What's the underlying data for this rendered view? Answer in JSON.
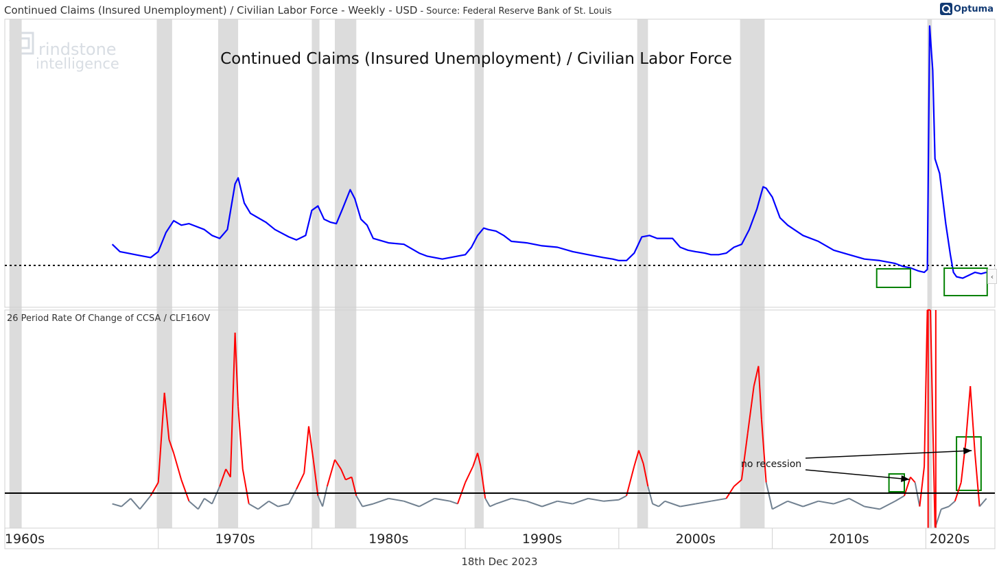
{
  "header": {
    "title": "Continued Claims (Insured Unemployment) / Civilian Labor Force - Weekly - USD",
    "source": "- Source: Federal Reserve Bank of St. Louis"
  },
  "brand": {
    "name": "Optuma",
    "icon": "optuma-logo-icon"
  },
  "watermark": {
    "line1": "rindstone",
    "line2": "intelligence"
  },
  "footer": {
    "date": "18th Dec 2023"
  },
  "colors": {
    "upper_line": "#0000ff",
    "lower_positive": "#ff0000",
    "lower_negative": "#708090",
    "recession_band": "#dcdcdc",
    "highlight_box": "#008000"
  },
  "chart_data": [
    {
      "type": "line",
      "title": "Continued Claims (Insured Unemployment) / Civilian Labor Force",
      "x_unit": "year",
      "xlim": [
        1960,
        2024.5
      ],
      "x_tick_labels": [
        "1960s",
        "1970s",
        "1980s",
        "1990s",
        "2000s",
        "2010s",
        "2020s"
      ],
      "reference_line": {
        "style": "dotted",
        "level_note": "horizontal reference at late-cycle lows"
      },
      "recessions": [
        [
          1960.3,
          1961.1
        ],
        [
          1969.9,
          1970.9
        ],
        [
          1973.9,
          1975.2
        ],
        [
          1980.0,
          1980.5
        ],
        [
          1981.5,
          1982.9
        ],
        [
          1990.6,
          1991.2
        ],
        [
          2001.2,
          2001.9
        ],
        [
          2007.9,
          2009.5
        ],
        [
          2020.1,
          2020.4
        ]
      ],
      "series": [
        {
          "x": [
            1967.0,
            1967.5,
            1968.0,
            1968.5,
            1969.0,
            1969.5,
            1970.0,
            1970.5,
            1971.0,
            1971.5,
            1972.0,
            1973.0,
            1973.5,
            1974.0,
            1974.5,
            1975.0,
            1975.2,
            1975.6,
            1976.0,
            1976.5,
            1977.0,
            1977.6,
            1978.5,
            1979.0,
            1979.6,
            1980.0,
            1980.4,
            1980.8,
            1981.2,
            1981.6,
            1982.0,
            1982.5,
            1982.8,
            1983.2,
            1983.6,
            1984.0,
            1985.0,
            1986.0,
            1987.0,
            1987.5,
            1988.0,
            1988.5,
            1989.0,
            1989.5,
            1990.0,
            1990.4,
            1990.8,
            1991.2,
            1991.5,
            1992.0,
            1992.5,
            1993.0,
            1994.0,
            1995.0,
            1996.0,
            1997.0,
            1998.0,
            1998.5,
            1999.0,
            1999.6,
            2000.0,
            2000.5,
            2001.0,
            2001.5,
            2002.0,
            2002.5,
            2003.0,
            2003.5,
            2004.0,
            2004.5,
            2005.0,
            2005.6,
            2006.0,
            2006.5,
            2007.0,
            2007.5,
            2008.0,
            2008.5,
            2009.0,
            2009.4,
            2009.6,
            2010.0,
            2010.5,
            2011.0,
            2012.0,
            2013.0,
            2014.0,
            2015.0,
            2016.0,
            2017.0,
            2018.0,
            2018.5,
            2019.0,
            2019.5,
            2019.9,
            2020.1,
            2020.25,
            2020.45,
            2020.6,
            2020.9,
            2021.3,
            2021.6,
            2021.8,
            2022.0,
            2022.4,
            2022.8,
            2023.2,
            2023.6,
            2023.95
          ],
          "y": [
            3.2,
            2.7,
            2.6,
            2.5,
            2.4,
            2.3,
            2.7,
            4.0,
            4.8,
            4.5,
            4.6,
            4.2,
            3.8,
            3.6,
            4.2,
            7.3,
            7.7,
            6.0,
            5.3,
            5.0,
            4.7,
            4.2,
            3.7,
            3.5,
            3.8,
            5.5,
            5.8,
            4.9,
            4.7,
            4.6,
            5.6,
            6.9,
            6.3,
            4.9,
            4.5,
            3.6,
            3.3,
            3.2,
            2.6,
            2.4,
            2.3,
            2.2,
            2.3,
            2.4,
            2.5,
            3.0,
            3.8,
            4.3,
            4.2,
            4.1,
            3.8,
            3.4,
            3.3,
            3.1,
            3.0,
            2.7,
            2.5,
            2.4,
            2.3,
            2.2,
            2.1,
            2.1,
            2.6,
            3.7,
            3.8,
            3.6,
            3.6,
            3.6,
            3.0,
            2.8,
            2.7,
            2.6,
            2.5,
            2.5,
            2.6,
            3.0,
            3.2,
            4.2,
            5.6,
            7.1,
            7.0,
            6.4,
            5.0,
            4.5,
            3.8,
            3.4,
            2.8,
            2.5,
            2.2,
            2.1,
            1.9,
            1.7,
            1.6,
            1.4,
            1.3,
            1.5,
            18.0,
            15.0,
            9.0,
            8.0,
            4.6,
            2.5,
            1.3,
            1.0,
            0.9,
            1.1,
            1.3,
            1.2,
            1.3
          ]
        }
      ]
    },
    {
      "type": "line",
      "title": "26 Period Rate Of Change of CCSA / CLF16OV",
      "x_unit": "year",
      "xlim": [
        1960,
        2024.5
      ],
      "reference_line": {
        "y": 0,
        "style": "solid"
      },
      "annotations": [
        {
          "text": "no recession",
          "targets": [
            2019.2,
            2022.9
          ]
        }
      ],
      "series": [
        {
          "x": [
            1967.0,
            1967.6,
            1968.2,
            1968.8,
            1969.5,
            1970.0,
            1970.4,
            1970.7,
            1971.0,
            1971.5,
            1972.0,
            1972.6,
            1973.0,
            1973.5,
            1974.0,
            1974.4,
            1974.7,
            1975.0,
            1975.2,
            1975.5,
            1975.9,
            1976.5,
            1977.2,
            1977.8,
            1978.5,
            1979.0,
            1979.5,
            1979.8,
            1980.1,
            1980.4,
            1980.7,
            1981.0,
            1981.5,
            1981.9,
            1982.2,
            1982.6,
            1982.9,
            1983.3,
            1984.0,
            1985.0,
            1986.0,
            1987.0,
            1988.0,
            1989.0,
            1989.5,
            1990.0,
            1990.5,
            1990.8,
            1991.0,
            1991.3,
            1991.6,
            1992.0,
            1993.0,
            1994.0,
            1995.0,
            1996.0,
            1997.0,
            1998.0,
            1999.0,
            2000.0,
            2000.5,
            2001.0,
            2001.3,
            2001.6,
            2001.9,
            2002.2,
            2002.6,
            2003.0,
            2004.0,
            2005.0,
            2006.0,
            2007.0,
            2007.5,
            2008.0,
            2008.4,
            2008.8,
            2009.1,
            2009.3,
            2009.6,
            2010.0,
            2011.0,
            2012.0,
            2013.0,
            2014.0,
            2015.0,
            2016.0,
            2017.0,
            2018.0,
            2018.6,
            2019.0,
            2019.3,
            2019.6,
            2019.9,
            2020.1,
            2020.3,
            2020.6,
            2021.0,
            2021.5,
            2021.9,
            2022.3,
            2022.6,
            2022.9,
            2023.2,
            2023.5,
            2023.95
          ],
          "y": [
            -8,
            -10,
            -4,
            -12,
            -2,
            8,
            75,
            40,
            30,
            10,
            -6,
            -12,
            -4,
            -8,
            5,
            18,
            12,
            120,
            65,
            18,
            -8,
            -12,
            -6,
            -10,
            -8,
            3,
            15,
            50,
            25,
            -2,
            -10,
            5,
            25,
            18,
            10,
            12,
            -2,
            -10,
            -8,
            -4,
            -6,
            -10,
            -4,
            -6,
            -8,
            8,
            20,
            30,
            20,
            -4,
            -10,
            -8,
            -4,
            -6,
            -10,
            -6,
            -8,
            -4,
            -6,
            -5,
            -2,
            20,
            32,
            22,
            5,
            -8,
            -10,
            -6,
            -10,
            -8,
            -6,
            -4,
            5,
            10,
            45,
            80,
            95,
            55,
            8,
            -12,
            -6,
            -10,
            -6,
            -8,
            -4,
            -10,
            -12,
            -6,
            -2,
            12,
            8,
            -10,
            20,
            250,
            150,
            -30,
            -12,
            -10,
            -6,
            8,
            38,
            80,
            30,
            -10,
            -4
          ]
        }
      ]
    }
  ]
}
